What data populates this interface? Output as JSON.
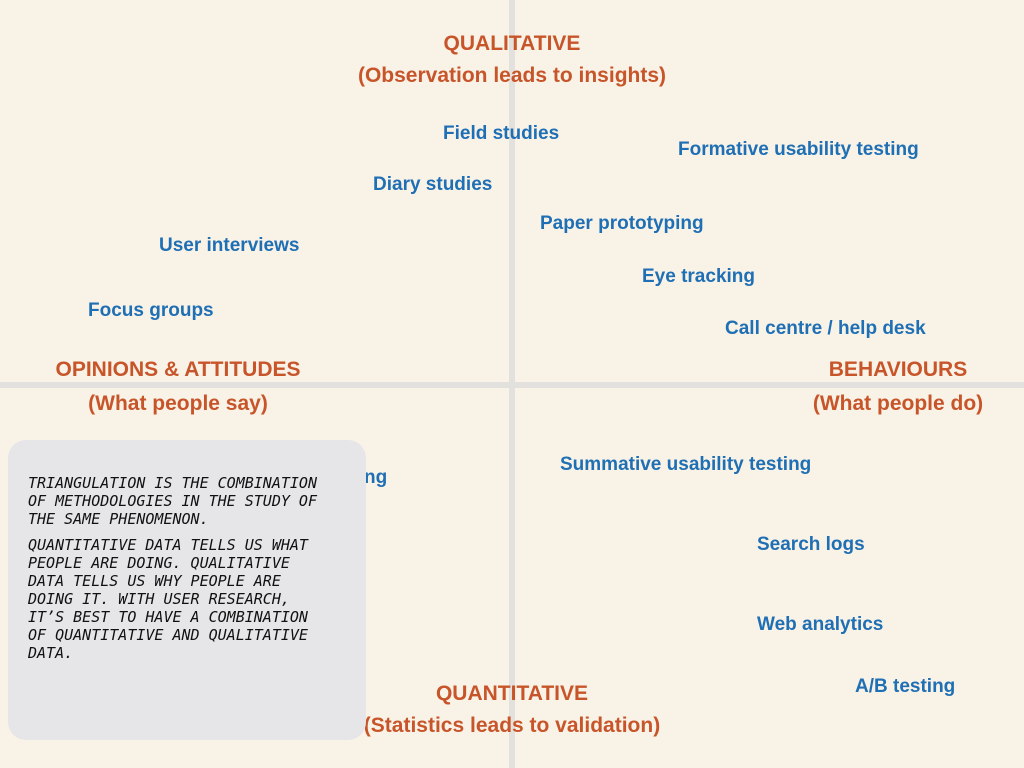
{
  "axes": {
    "top": {
      "title": "QUALITATIVE",
      "subtitle": "(Observation leads to insights)"
    },
    "bottom": {
      "title": "QUANTITATIVE",
      "subtitle": "(Statistics leads to validation)"
    },
    "left": {
      "title": "OPINIONS & ATTITUDES",
      "subtitle": "(What people say)"
    },
    "right": {
      "title": "BEHAVIOURS",
      "subtitle": "(What people do)"
    }
  },
  "methods": {
    "field_studies": "Field studies",
    "formative_usability": "Formative usability testing",
    "diary_studies": "Diary studies",
    "paper_prototyping": "Paper prototyping",
    "user_interviews": "User interviews",
    "eye_tracking": "Eye tracking",
    "focus_groups": "Focus groups",
    "call_centre": "Call centre / help desk",
    "partial_reporting": "rting",
    "summative_usability": "Summative usability testing",
    "search_logs": "Search logs",
    "web_analytics": "Web analytics",
    "ab_testing": "A/B testing"
  },
  "note": {
    "paragraph1": "Triangulation is the combination of methodologies in the study of the same phenomenon.",
    "paragraph2": "Quantitative data tells us what people are doing. Qualitative data tells us why people are doing it. With user research, it’s best to have a combination of quantitative and qualitative data."
  },
  "colors": {
    "background": "#f8f2e7",
    "axis_label": "#c8552a",
    "method_label": "#1f6fb4",
    "note_background": "#e6e6e8",
    "grid": "#e3e1dd"
  }
}
